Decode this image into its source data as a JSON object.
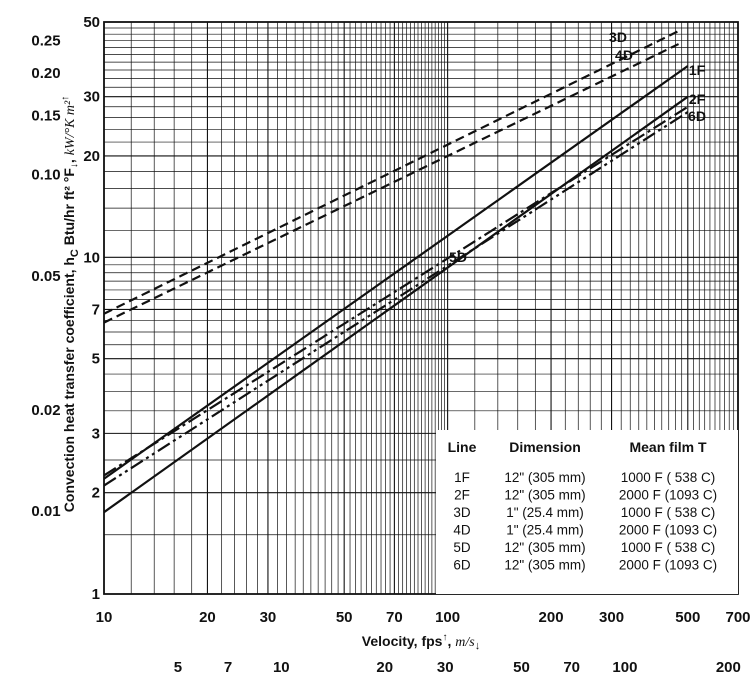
{
  "chart_data": {
    "type": "line",
    "scale": "log-log",
    "x_axis": {
      "label": "Velocity, fps",
      "label_unit": "m/s",
      "range": [
        10,
        700
      ],
      "ticks": [
        "10",
        "20",
        "30",
        "50",
        "70",
        "100",
        "200",
        "300",
        "500",
        "700"
      ],
      "secondary_ticks": [
        "5",
        "7",
        "10",
        "20",
        "30",
        "50",
        "70",
        "100",
        "200"
      ]
    },
    "y_axis": {
      "label": "Convection heat transfer coefficient, h",
      "label_sub": "C",
      "label_unit_1": "Btu/hr ft² °F",
      "label_unit_2": "kW/°K m²",
      "range": [
        1,
        50
      ],
      "ticks": [
        "1",
        "2",
        "3",
        "5",
        "7",
        "10",
        "20",
        "30",
        "50"
      ],
      "secondary_ticks": [
        "0.01",
        "0.02",
        "0.05",
        "0.10",
        "0.15",
        "0.20",
        "0.25"
      ]
    },
    "series": [
      {
        "name": "1F",
        "style": "solid",
        "x": [
          10,
          500
        ],
        "y": [
          2.2,
          37
        ]
      },
      {
        "name": "2F",
        "style": "solid",
        "x": [
          10,
          500
        ],
        "y": [
          1.75,
          30
        ]
      },
      {
        "name": "3D",
        "style": "dashed",
        "x": [
          10,
          470
        ],
        "y": [
          6.8,
          47
        ]
      },
      {
        "name": "4D",
        "style": "dashed",
        "x": [
          10,
          470
        ],
        "y": [
          6.4,
          43
        ]
      },
      {
        "name": "5D",
        "style": "dashdot",
        "x": [
          10,
          500
        ],
        "y": [
          2.25,
          28
        ]
      },
      {
        "name": "6D",
        "style": "dashdot2",
        "x": [
          10,
          500
        ],
        "y": [
          2.1,
          27
        ]
      }
    ],
    "legend": {
      "position": "bottom-right",
      "headers": [
        "Line",
        "Dimension",
        "Mean film T"
      ],
      "rows": [
        [
          "1F",
          "12\" (305 mm)",
          "1000 F (  538 C)"
        ],
        [
          "2F",
          "12\" (305 mm)",
          "2000 F (1093 C)"
        ],
        [
          "3D",
          "1\" (25.4 mm)",
          "1000 F (  538 C)"
        ],
        [
          "4D",
          "1\" (25.4 mm)",
          "2000 F (1093 C)"
        ],
        [
          "5D",
          "12\" (305 mm)",
          "1000 F (  538 C)"
        ],
        [
          "6D",
          "12\" (305 mm)",
          "2000 F (1093 C)"
        ]
      ]
    },
    "grid": true
  }
}
